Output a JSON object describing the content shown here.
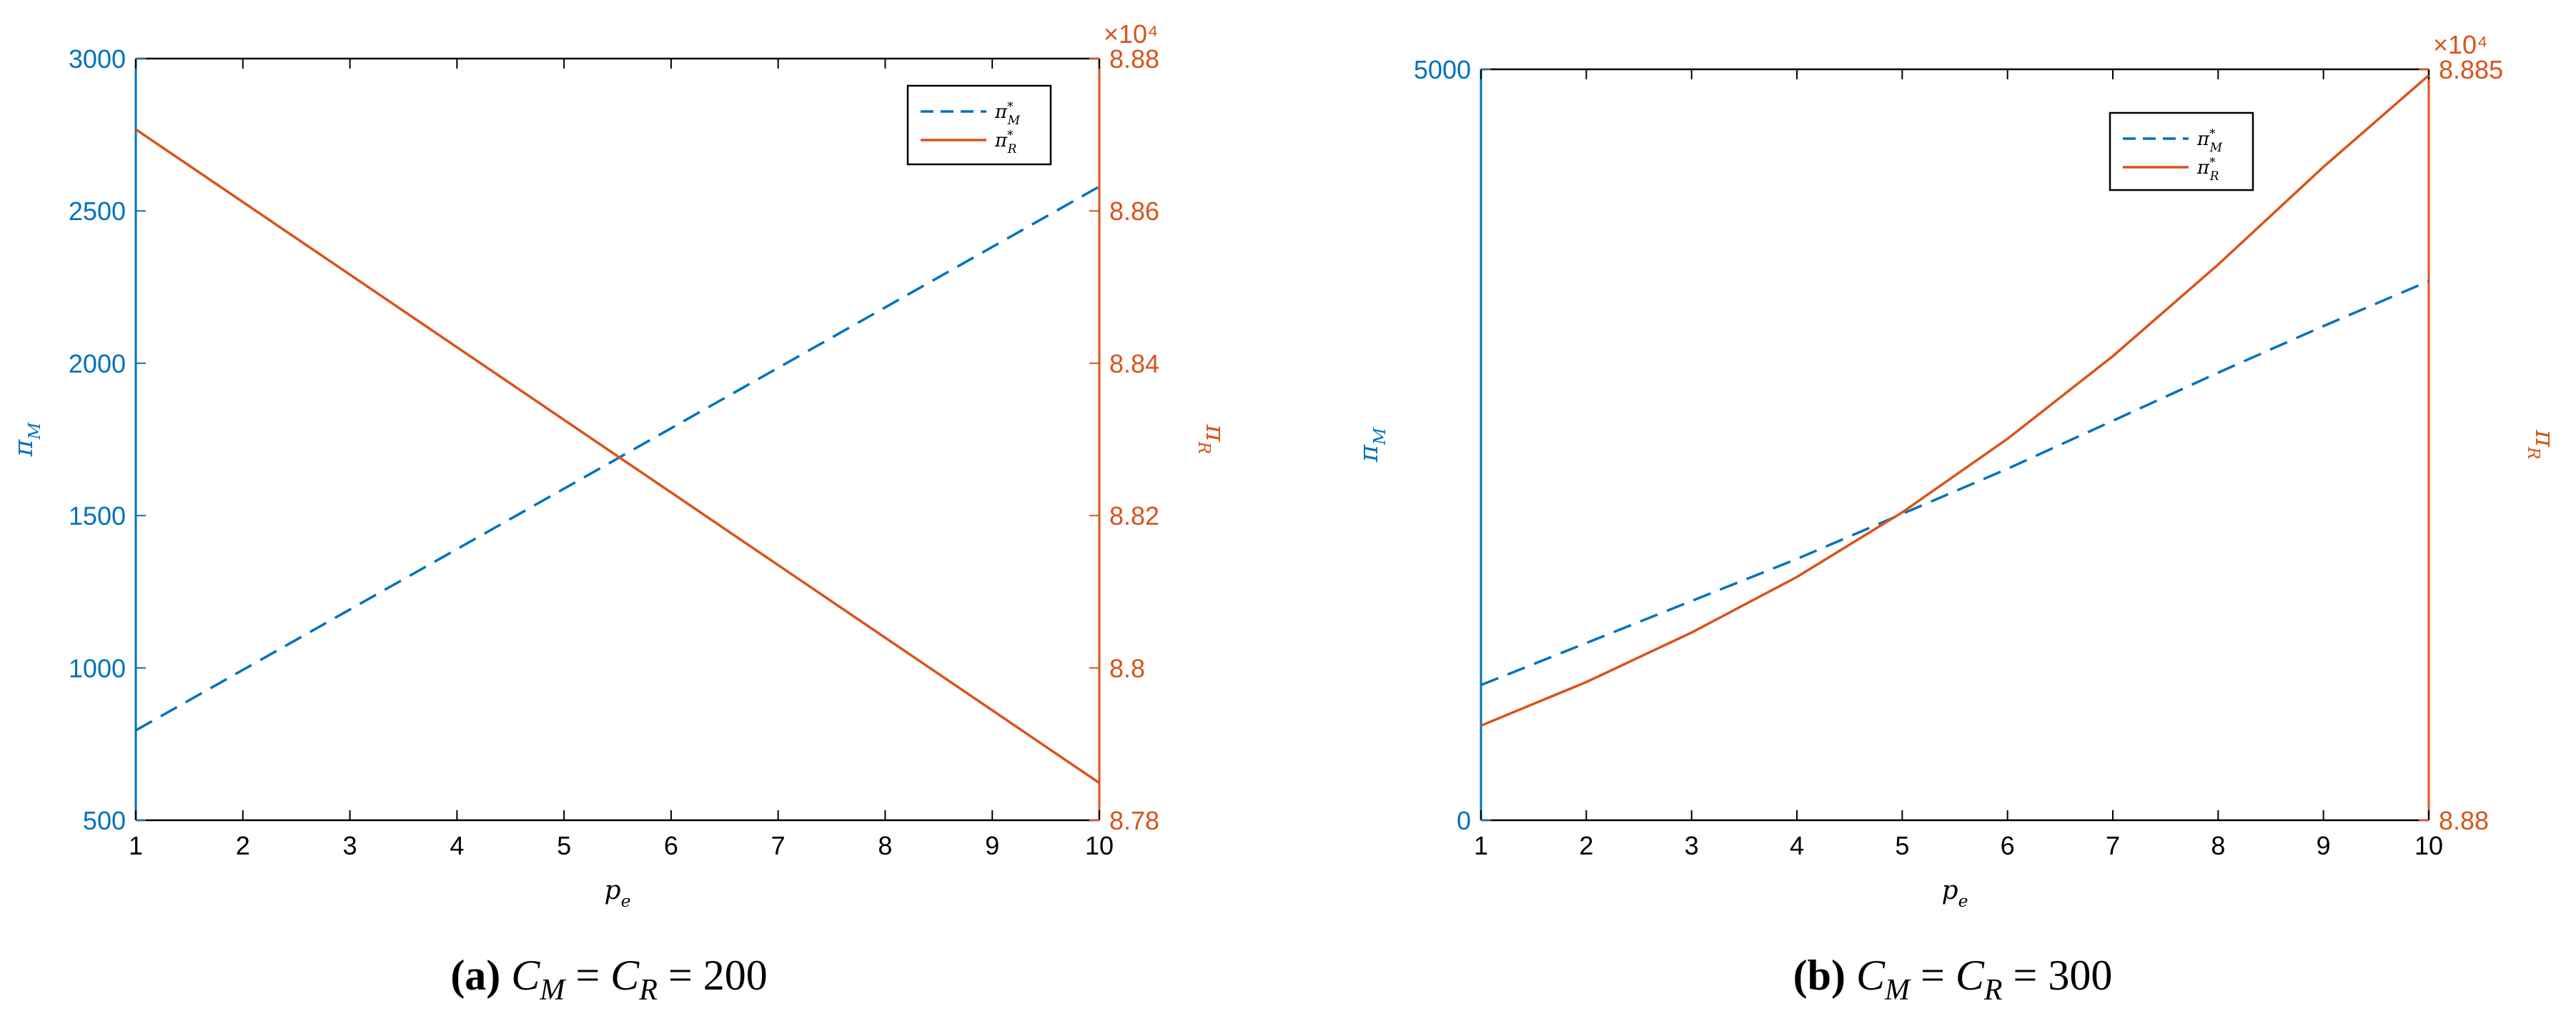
{
  "colors": {
    "left_axis": "#0072BD",
    "right_axis": "#D95319",
    "box": "#000000"
  },
  "chart_data": [
    {
      "type": "line",
      "caption": {
        "tag": "(a)",
        "expr": "C_M = C_R = 200"
      },
      "xlabel": "p_e",
      "ylabel_left": "π_M",
      "ylabel_right": "π_R",
      "xlim": [
        1,
        10
      ],
      "xticks": [
        "1",
        "2",
        "3",
        "4",
        "5",
        "6",
        "7",
        "8",
        "9",
        "10"
      ],
      "ylim_left": [
        500,
        3000
      ],
      "yticks_left": [
        "500",
        "1000",
        "1500",
        "2000",
        "2500",
        "3000"
      ],
      "ylim_right": [
        8.78,
        8.88
      ],
      "yticks_right": [
        "8.78",
        "8.8",
        "8.82",
        "8.84",
        "8.86",
        "8.88"
      ],
      "right_multiplier": "×10⁴",
      "grid": false,
      "legend_position": "top-right",
      "series": [
        {
          "name": "π*_M",
          "axis": "left",
          "style": "dashed",
          "x": [
            1,
            10
          ],
          "y": [
            795,
            2580
          ]
        },
        {
          "name": "π*_R",
          "axis": "right",
          "style": "solid",
          "x": [
            1,
            10
          ],
          "y": [
            8.8707,
            8.7849
          ]
        }
      ]
    },
    {
      "type": "line",
      "caption": {
        "tag": "(b)",
        "expr": "C_M = C_R = 300"
      },
      "xlabel": "p_e",
      "ylabel_left": "π_M",
      "ylabel_right": "π_R",
      "xlim": [
        1,
        10
      ],
      "xticks": [
        "1",
        "2",
        "3",
        "4",
        "5",
        "6",
        "7",
        "8",
        "9",
        "10"
      ],
      "ylim_left": [
        0,
        5000
      ],
      "yticks_left": [
        "0",
        "5000"
      ],
      "ylim_right": [
        8.88,
        8.885
      ],
      "yticks_right": [
        "8.88",
        "8.885"
      ],
      "right_multiplier": "×10⁴",
      "grid": false,
      "legend_position": "top-right",
      "series": [
        {
          "name": "π*_M",
          "axis": "left",
          "style": "dashed",
          "x": [
            1,
            2,
            3,
            4,
            5,
            6,
            7,
            8,
            9,
            10
          ],
          "y": [
            900,
            1180,
            1460,
            1740,
            2040,
            2340,
            2660,
            2980,
            3290,
            3590
          ]
        },
        {
          "name": "π*_R",
          "axis": "right",
          "style": "solid",
          "x": [
            1,
            2,
            3,
            4,
            5,
            6,
            7,
            8,
            9,
            10
          ],
          "y": [
            8.88063,
            8.88092,
            8.88125,
            8.88162,
            8.88205,
            8.88254,
            8.88309,
            8.8837,
            8.88435,
            8.88496
          ]
        }
      ]
    }
  ]
}
